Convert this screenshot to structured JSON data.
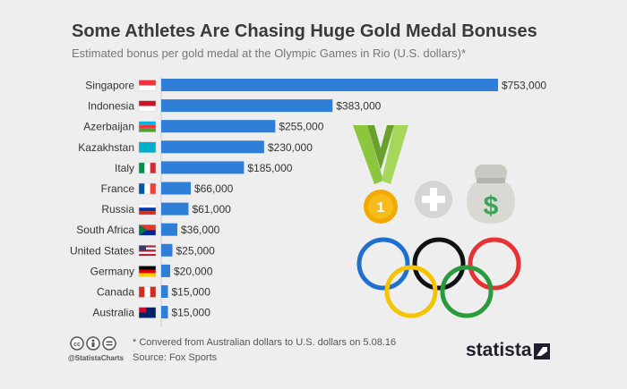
{
  "header": {
    "title": "Some Athletes Are Chasing Huge Gold Medal Bonuses",
    "subtitle": "Estimated bonus per gold medal at the Olympic Games in Rio (U.S. dollars)*"
  },
  "chart_data": {
    "type": "bar",
    "orientation": "horizontal",
    "title": "Some Athletes Are Chasing Huge Gold Medal Bonuses",
    "subtitle": "Estimated bonus per gold medal at the Olympic Games in Rio (U.S. dollars)*",
    "xlabel": "",
    "ylabel": "",
    "xlim": [
      0,
      753000
    ],
    "grid": false,
    "categories": [
      "Singapore",
      "Indonesia",
      "Azerbaijan",
      "Kazakhstan",
      "Italy",
      "France",
      "Russia",
      "South Africa",
      "United States",
      "Germany",
      "Canada",
      "Australia"
    ],
    "values": [
      753000,
      383000,
      255000,
      230000,
      185000,
      66000,
      61000,
      36000,
      25000,
      20000,
      15000,
      15000
    ],
    "value_labels": [
      "$753,000",
      "$383,000",
      "$255,000",
      "$230,000",
      "$185,000",
      "$66,000",
      "$61,000",
      "$36,000",
      "$25,000",
      "$20,000",
      "$15,000",
      "$15,000"
    ],
    "bar_color": "#2f7fd8"
  },
  "footer": {
    "footnote": "* Convered from Australian dollars to U.S. dollars on 5.08.16",
    "source": "Source: Fox Sports",
    "handle": "@StatistaCharts",
    "brand": "statista",
    "license_icons": [
      "cc-icon",
      "by-icon",
      "nd-icon"
    ]
  },
  "illustration": {
    "medal_number": "1",
    "icons": [
      "medal-icon",
      "plus-icon",
      "money-bag-icon",
      "olympic-rings-icon"
    ],
    "ring_colors": [
      "#1e6fce",
      "#111111",
      "#e63232",
      "#f5c400",
      "#2a9a3d"
    ]
  }
}
